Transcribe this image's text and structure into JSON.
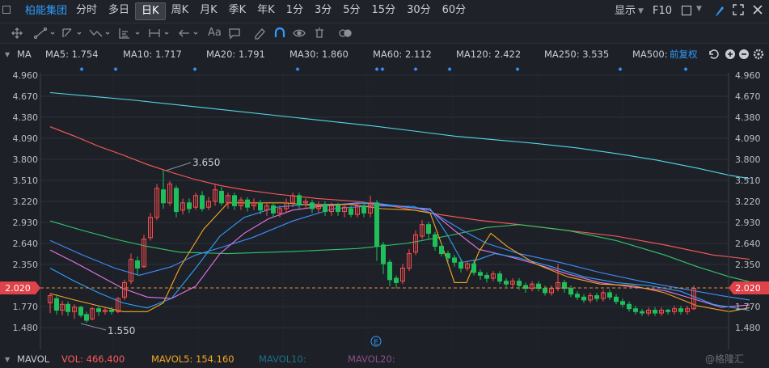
{
  "tabbar": {
    "stock_name": "柏能集团",
    "periods": [
      "分时",
      "多日",
      "日K",
      "周K",
      "月K",
      "季K",
      "年K",
      "1分",
      "3分",
      "5分",
      "15分",
      "30分",
      "60分"
    ],
    "active_period": "日K",
    "display_label": "显示",
    "f10_label": "F10"
  },
  "toolbar": {
    "text_tool_label": "Aa"
  },
  "ma_bar": {
    "label": "MA",
    "items": [
      {
        "text": "MA5: 1.754",
        "color": "#f5a623"
      },
      {
        "text": "MA10: 1.717",
        "color": "#2ea0ff"
      },
      {
        "text": "MA20: 1.791",
        "color": "#e872e8"
      },
      {
        "text": "MA30: 1.860",
        "color": "#3f8cff"
      },
      {
        "text": "MA60: 2.112",
        "color": "#33c46b"
      },
      {
        "text": "MA120: 2.422",
        "color": "#ff5a5a"
      },
      {
        "text": "MA250: 3.535",
        "color": "#53d6e6"
      },
      {
        "text": "MA500:",
        "color": "#a88a2a"
      }
    ],
    "adjust_label": "前复权"
  },
  "price_axis": {
    "ticks": [
      "4.960",
      "4.670",
      "4.380",
      "4.090",
      "3.800",
      "3.510",
      "3.220",
      "2.930",
      "2.640",
      "2.350",
      "2.020",
      "1.770",
      "1.480"
    ],
    "current_price": "2.020"
  },
  "chart_data": {
    "type": "candlestick",
    "y_ticks": [
      4.96,
      4.67,
      4.38,
      4.09,
      3.8,
      3.51,
      3.22,
      2.93,
      2.64,
      2.35,
      2.02,
      1.77,
      1.48
    ],
    "current_price": 2.02,
    "high_label": "3.650",
    "low_label": "1.550",
    "series": [
      {
        "name": "MA5",
        "value": 1.754,
        "color": "#f5a623"
      },
      {
        "name": "MA10",
        "value": 1.717,
        "color": "#2ea0ff"
      },
      {
        "name": "MA20",
        "value": 1.791,
        "color": "#e872e8"
      },
      {
        "name": "MA30",
        "value": 1.86,
        "color": "#3f8cff"
      },
      {
        "name": "MA60",
        "value": 2.112,
        "color": "#33c46b"
      },
      {
        "name": "MA120",
        "value": 2.422,
        "color": "#ff5a5a"
      },
      {
        "name": "MA250",
        "value": 3.535,
        "color": "#53d6e6"
      }
    ],
    "ma_lines": {
      "MA250": [
        [
          0,
          4.72
        ],
        [
          100,
          4.62
        ],
        [
          200,
          4.5
        ],
        [
          300,
          4.38
        ],
        [
          400,
          4.26
        ],
        [
          450,
          4.19
        ],
        [
          500,
          4.12
        ],
        [
          550,
          4.07
        ],
        [
          600,
          4.02
        ],
        [
          650,
          3.96
        ],
        [
          700,
          3.88
        ],
        [
          750,
          3.79
        ],
        [
          800,
          3.68
        ],
        [
          840,
          3.58
        ],
        [
          865,
          3.535
        ]
      ],
      "MA120": [
        [
          0,
          4.25
        ],
        [
          30,
          4.12
        ],
        [
          60,
          3.98
        ],
        [
          90,
          3.86
        ],
        [
          120,
          3.73
        ],
        [
          150,
          3.62
        ],
        [
          180,
          3.52
        ],
        [
          210,
          3.44
        ],
        [
          240,
          3.38
        ],
        [
          280,
          3.32
        ],
        [
          330,
          3.26
        ],
        [
          380,
          3.22
        ],
        [
          430,
          3.14
        ],
        [
          480,
          3.04
        ],
        [
          530,
          2.96
        ],
        [
          580,
          2.9
        ],
        [
          640,
          2.82
        ],
        [
          700,
          2.74
        ],
        [
          760,
          2.62
        ],
        [
          820,
          2.48
        ],
        [
          865,
          2.422
        ]
      ],
      "MA60": [
        [
          0,
          2.95
        ],
        [
          40,
          2.82
        ],
        [
          80,
          2.7
        ],
        [
          120,
          2.6
        ],
        [
          160,
          2.52
        ],
        [
          220,
          2.5
        ],
        [
          300,
          2.53
        ],
        [
          380,
          2.57
        ],
        [
          440,
          2.64
        ],
        [
          490,
          2.74
        ],
        [
          540,
          2.86
        ],
        [
          580,
          2.9
        ],
        [
          640,
          2.82
        ],
        [
          700,
          2.68
        ],
        [
          760,
          2.48
        ],
        [
          800,
          2.32
        ],
        [
          840,
          2.18
        ],
        [
          865,
          2.112
        ]
      ],
      "MA30": [
        [
          0,
          2.68
        ],
        [
          40,
          2.48
        ],
        [
          80,
          2.3
        ],
        [
          110,
          2.2
        ],
        [
          150,
          2.32
        ],
        [
          180,
          2.48
        ],
        [
          210,
          2.58
        ],
        [
          250,
          2.72
        ],
        [
          300,
          2.95
        ],
        [
          350,
          3.12
        ],
        [
          400,
          3.16
        ],
        [
          450,
          3.15
        ],
        [
          480,
          3.02
        ],
        [
          510,
          2.82
        ],
        [
          540,
          2.64
        ],
        [
          580,
          2.5
        ],
        [
          630,
          2.38
        ],
        [
          680,
          2.24
        ],
        [
          730,
          2.12
        ],
        [
          790,
          2.0
        ],
        [
          830,
          1.92
        ],
        [
          865,
          1.86
        ]
      ],
      "MA20": [
        [
          0,
          2.55
        ],
        [
          30,
          2.38
        ],
        [
          60,
          2.2
        ],
        [
          90,
          2.02
        ],
        [
          120,
          1.9
        ],
        [
          150,
          1.88
        ],
        [
          180,
          2.05
        ],
        [
          210,
          2.5
        ],
        [
          240,
          2.78
        ],
        [
          270,
          2.98
        ],
        [
          300,
          3.1
        ],
        [
          340,
          3.16
        ],
        [
          380,
          3.2
        ],
        [
          430,
          3.16
        ],
        [
          470,
          3.1
        ],
        [
          500,
          2.82
        ],
        [
          530,
          2.56
        ],
        [
          560,
          2.48
        ],
        [
          600,
          2.36
        ],
        [
          640,
          2.22
        ],
        [
          680,
          2.1
        ],
        [
          720,
          2.04
        ],
        [
          760,
          1.99
        ],
        [
          800,
          1.86
        ],
        [
          830,
          1.76
        ],
        [
          865,
          1.791
        ]
      ],
      "MA10": [
        [
          0,
          2.3
        ],
        [
          30,
          2.12
        ],
        [
          60,
          1.96
        ],
        [
          90,
          1.82
        ],
        [
          120,
          1.75
        ],
        [
          150,
          1.88
        ],
        [
          180,
          2.3
        ],
        [
          210,
          2.74
        ],
        [
          240,
          3.0
        ],
        [
          280,
          3.14
        ],
        [
          320,
          3.18
        ],
        [
          360,
          3.18
        ],
        [
          400,
          3.2
        ],
        [
          440,
          3.14
        ],
        [
          470,
          3.12
        ],
        [
          490,
          2.78
        ],
        [
          510,
          2.38
        ],
        [
          530,
          2.42
        ],
        [
          550,
          2.5
        ],
        [
          580,
          2.44
        ],
        [
          620,
          2.32
        ],
        [
          660,
          2.18
        ],
        [
          700,
          2.1
        ],
        [
          740,
          2.06
        ],
        [
          780,
          1.98
        ],
        [
          820,
          1.8
        ],
        [
          865,
          1.717
        ]
      ],
      "MA5": [
        [
          0,
          1.95
        ],
        [
          30,
          1.86
        ],
        [
          60,
          1.78
        ],
        [
          90,
          1.7
        ],
        [
          120,
          1.7
        ],
        [
          140,
          1.82
        ],
        [
          160,
          2.3
        ],
        [
          190,
          2.84
        ],
        [
          220,
          3.2
        ],
        [
          250,
          3.2
        ],
        [
          290,
          3.2
        ],
        [
          330,
          3.16
        ],
        [
          370,
          3.18
        ],
        [
          410,
          3.12
        ],
        [
          450,
          3.1
        ],
        [
          470,
          3.06
        ],
        [
          485,
          2.6
        ],
        [
          500,
          2.1
        ],
        [
          515,
          2.1
        ],
        [
          530,
          2.52
        ],
        [
          545,
          2.78
        ],
        [
          565,
          2.6
        ],
        [
          600,
          2.36
        ],
        [
          640,
          2.18
        ],
        [
          680,
          2.08
        ],
        [
          720,
          2.06
        ],
        [
          760,
          1.96
        ],
        [
          800,
          1.78
        ],
        [
          840,
          1.7
        ],
        [
          865,
          1.754
        ]
      ]
    },
    "candles": [
      [
        0,
        1.82,
        1.92,
        1.68,
        1.95
      ],
      [
        8,
        1.88,
        1.72,
        1.66,
        1.94
      ],
      [
        15,
        1.72,
        1.8,
        1.65,
        1.85
      ],
      [
        22,
        1.8,
        1.7,
        1.64,
        1.84
      ],
      [
        30,
        1.7,
        1.76,
        1.6,
        1.8
      ],
      [
        38,
        1.76,
        1.65,
        1.62,
        1.78
      ],
      [
        45,
        1.66,
        1.58,
        1.55,
        1.7
      ],
      [
        52,
        1.6,
        1.74,
        1.58,
        1.76
      ],
      [
        60,
        1.74,
        1.7,
        1.64,
        1.78
      ],
      [
        68,
        1.7,
        1.72,
        1.66,
        1.76
      ],
      [
        76,
        1.72,
        1.7,
        1.66,
        1.76
      ],
      [
        84,
        1.7,
        1.88,
        1.68,
        1.9
      ],
      [
        92,
        1.9,
        2.1,
        1.86,
        2.14
      ],
      [
        100,
        2.12,
        2.42,
        2.08,
        2.5
      ],
      [
        108,
        2.4,
        2.3,
        2.2,
        2.46
      ],
      [
        116,
        2.32,
        2.7,
        2.3,
        2.76
      ],
      [
        124,
        2.72,
        3.0,
        2.68,
        3.06
      ],
      [
        132,
        3.0,
        3.4,
        2.96,
        3.46
      ],
      [
        140,
        3.38,
        3.2,
        3.12,
        3.65
      ],
      [
        148,
        3.2,
        3.46,
        3.16,
        3.5
      ],
      [
        156,
        3.4,
        3.08,
        3.0,
        3.44
      ],
      [
        164,
        3.1,
        3.2,
        3.04,
        3.26
      ],
      [
        172,
        3.2,
        3.12,
        3.06,
        3.26
      ],
      [
        180,
        3.14,
        3.3,
        3.1,
        3.34
      ],
      [
        188,
        3.3,
        3.12,
        3.08,
        3.36
      ],
      [
        196,
        3.14,
        3.22,
        3.1,
        3.28
      ],
      [
        204,
        3.22,
        3.38,
        3.16,
        3.46
      ],
      [
        212,
        3.36,
        3.2,
        3.16,
        3.42
      ],
      [
        220,
        3.2,
        3.3,
        3.12,
        3.34
      ],
      [
        228,
        3.3,
        3.16,
        3.1,
        3.34
      ],
      [
        236,
        3.16,
        3.24,
        3.1,
        3.28
      ],
      [
        244,
        3.24,
        3.14,
        3.08,
        3.28
      ],
      [
        252,
        3.16,
        3.2,
        3.1,
        3.26
      ],
      [
        260,
        3.2,
        3.1,
        3.04,
        3.24
      ],
      [
        268,
        3.1,
        3.16,
        3.02,
        3.2
      ],
      [
        276,
        3.16,
        3.06,
        3.0,
        3.2
      ],
      [
        284,
        3.06,
        3.12,
        3.0,
        3.16
      ],
      [
        292,
        3.12,
        3.2,
        3.06,
        3.26
      ],
      [
        300,
        3.2,
        3.3,
        3.14,
        3.34
      ],
      [
        308,
        3.3,
        3.18,
        3.1,
        3.34
      ],
      [
        316,
        3.2,
        3.22,
        3.12,
        3.26
      ],
      [
        324,
        3.2,
        3.12,
        3.06,
        3.24
      ],
      [
        332,
        3.12,
        3.18,
        3.06,
        3.22
      ],
      [
        340,
        3.18,
        3.08,
        3.02,
        3.22
      ],
      [
        348,
        3.08,
        3.16,
        3.02,
        3.2
      ],
      [
        356,
        3.16,
        3.08,
        3.02,
        3.2
      ],
      [
        364,
        3.08,
        3.14,
        3.0,
        3.18
      ],
      [
        372,
        3.12,
        3.04,
        3.0,
        3.16
      ],
      [
        380,
        3.04,
        3.16,
        3.0,
        3.2
      ],
      [
        388,
        3.16,
        3.06,
        3.0,
        3.2
      ],
      [
        396,
        3.06,
        3.2,
        3.0,
        3.3
      ],
      [
        404,
        3.2,
        2.6,
        2.4,
        3.24
      ],
      [
        412,
        2.62,
        2.36,
        2.22,
        2.66
      ],
      [
        420,
        2.38,
        2.14,
        2.05,
        2.42
      ],
      [
        428,
        2.16,
        2.1,
        2.02,
        2.2
      ],
      [
        436,
        2.12,
        2.3,
        2.08,
        2.36
      ],
      [
        444,
        2.3,
        2.5,
        2.26,
        2.56
      ],
      [
        452,
        2.52,
        2.76,
        2.48,
        2.82
      ],
      [
        460,
        2.74,
        2.9,
        2.7,
        2.96
      ],
      [
        468,
        2.9,
        2.78,
        2.7,
        2.94
      ],
      [
        476,
        2.76,
        2.6,
        2.54,
        2.8
      ],
      [
        484,
        2.6,
        2.5,
        2.46,
        2.64
      ],
      [
        492,
        2.5,
        2.44,
        2.38,
        2.54
      ],
      [
        500,
        2.44,
        2.38,
        2.32,
        2.48
      ],
      [
        508,
        2.38,
        2.3,
        2.24,
        2.42
      ],
      [
        516,
        2.3,
        2.36,
        2.26,
        2.4
      ],
      [
        524,
        2.36,
        2.24,
        2.2,
        2.4
      ],
      [
        532,
        2.24,
        2.2,
        2.14,
        2.28
      ],
      [
        540,
        2.2,
        2.16,
        2.1,
        2.24
      ],
      [
        548,
        2.16,
        2.22,
        2.12,
        2.26
      ],
      [
        556,
        2.22,
        2.12,
        2.08,
        2.26
      ],
      [
        564,
        2.12,
        2.08,
        2.04,
        2.16
      ],
      [
        572,
        2.08,
        2.12,
        2.02,
        2.16
      ],
      [
        580,
        2.12,
        2.06,
        2.0,
        2.16
      ],
      [
        588,
        2.06,
        2.02,
        1.96,
        2.1
      ],
      [
        596,
        2.02,
        2.08,
        1.98,
        2.12
      ],
      [
        604,
        2.08,
        2.02,
        1.98,
        2.12
      ],
      [
        612,
        2.02,
        1.96,
        1.92,
        2.06
      ],
      [
        620,
        1.96,
        2.02,
        1.92,
        2.06
      ],
      [
        628,
        2.02,
        2.1,
        1.98,
        2.36
      ],
      [
        636,
        2.1,
        2.02,
        1.96,
        2.14
      ],
      [
        644,
        2.02,
        1.94,
        1.9,
        2.06
      ],
      [
        652,
        1.94,
        1.9,
        1.86,
        1.98
      ],
      [
        660,
        1.9,
        1.86,
        1.82,
        1.94
      ],
      [
        668,
        1.86,
        1.92,
        1.82,
        1.96
      ],
      [
        676,
        1.92,
        1.88,
        1.84,
        1.96
      ],
      [
        684,
        1.88,
        1.96,
        1.84,
        2.0
      ],
      [
        692,
        1.96,
        1.9,
        1.86,
        2.0
      ],
      [
        700,
        1.9,
        1.84,
        1.8,
        1.94
      ],
      [
        708,
        1.84,
        1.8,
        1.76,
        1.88
      ],
      [
        716,
        1.8,
        1.74,
        1.7,
        1.84
      ],
      [
        724,
        1.74,
        1.7,
        1.66,
        1.78
      ],
      [
        732,
        1.7,
        1.68,
        1.64,
        1.74
      ],
      [
        740,
        1.68,
        1.72,
        1.64,
        1.76
      ],
      [
        748,
        1.72,
        1.68,
        1.64,
        1.76
      ],
      [
        756,
        1.68,
        1.72,
        1.64,
        1.76
      ],
      [
        764,
        1.72,
        1.7,
        1.66,
        1.74
      ],
      [
        772,
        1.7,
        1.74,
        1.66,
        1.78
      ],
      [
        780,
        1.74,
        1.7,
        1.66,
        1.78
      ],
      [
        788,
        1.7,
        1.74,
        1.66,
        1.78
      ],
      [
        796,
        1.74,
        2.02,
        1.72,
        2.06
      ]
    ]
  },
  "vol_bar": {
    "label": "MAVOL",
    "vol": "VOL: 466.400",
    "mavol5": "MAVOL5: 154.160",
    "mavol10": "MAVOL10:",
    "mavol20": "MAVOL20:"
  },
  "watermark": "@格隆汇",
  "marker_label": "E",
  "colors": {
    "up": "#ff4d4f",
    "down": "#1fbf5c",
    "accent": "#2e9cff",
    "bg": "#1d2127"
  }
}
